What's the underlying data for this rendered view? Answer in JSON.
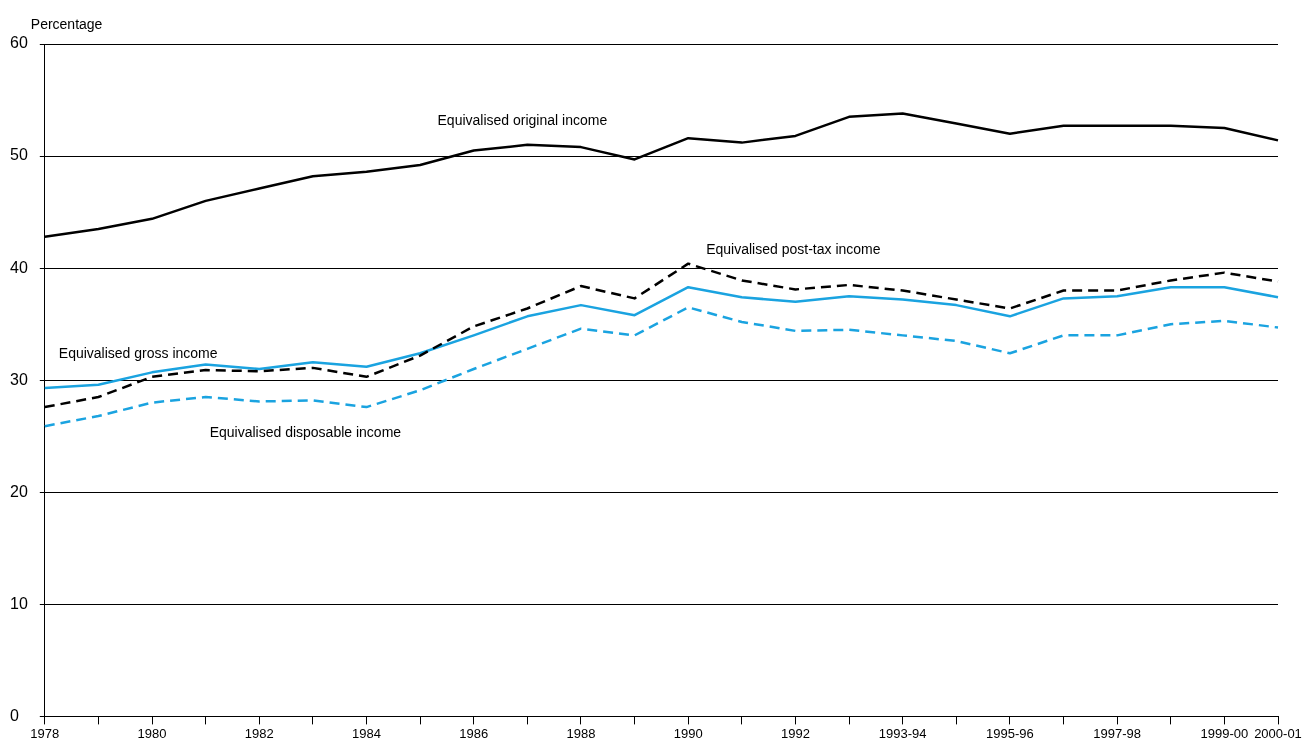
{
  "chart_data": {
    "type": "line",
    "ylabel": "Percentage",
    "categories": [
      "1978",
      null,
      "1980",
      null,
      "1982",
      null,
      "1984",
      null,
      "1986",
      null,
      "1988",
      null,
      "1990",
      null,
      "1992",
      null,
      "1993-94",
      null,
      "1995-96",
      null,
      "1997-98",
      null,
      "1999-00",
      "2000-01"
    ],
    "series": [
      {
        "name": "Equivalised original income",
        "color": "#000000",
        "line_style": "solid",
        "values": [
          42.8,
          43.5,
          44.4,
          46.0,
          47.1,
          48.2,
          48.6,
          49.2,
          50.5,
          51.0,
          50.8,
          49.7,
          51.6,
          51.2,
          51.8,
          53.5,
          53.8,
          52.9,
          52.0,
          52.7,
          52.7,
          52.7,
          52.5,
          51.4
        ]
      },
      {
        "name": "Equivalised post-tax income",
        "color": "#000000",
        "line_style": "dashed",
        "values": [
          27.6,
          28.5,
          30.3,
          30.9,
          30.8,
          31.1,
          30.3,
          32.2,
          34.8,
          36.4,
          38.4,
          37.3,
          40.4,
          38.9,
          38.1,
          38.5,
          38.0,
          37.2,
          36.4,
          38.0,
          38.0,
          38.9,
          39.6,
          38.8
        ]
      },
      {
        "name": "Equivalised gross income",
        "color": "#1aa3e0",
        "line_style": "solid",
        "values": [
          29.3,
          29.6,
          30.7,
          31.4,
          31.0,
          31.6,
          31.2,
          32.4,
          34.0,
          35.7,
          36.7,
          35.8,
          38.3,
          37.4,
          37.0,
          37.5,
          37.2,
          36.7,
          35.7,
          37.3,
          37.5,
          38.3,
          38.3,
          37.4
        ]
      },
      {
        "name": "Equivalised disposable income",
        "color": "#1aa3e0",
        "line_style": "dashed",
        "values": [
          25.9,
          26.8,
          28.0,
          28.5,
          28.1,
          28.2,
          27.6,
          29.1,
          31.0,
          32.8,
          34.6,
          34.0,
          36.5,
          35.2,
          34.4,
          34.5,
          34.0,
          33.5,
          32.4,
          34.0,
          34.0,
          35.0,
          35.3,
          34.7
        ]
      }
    ],
    "ylim": [
      0,
      60
    ],
    "yticks": [
      0,
      10,
      20,
      30,
      40,
      50,
      60
    ],
    "grid": "y",
    "legend": false,
    "marker": "none"
  }
}
